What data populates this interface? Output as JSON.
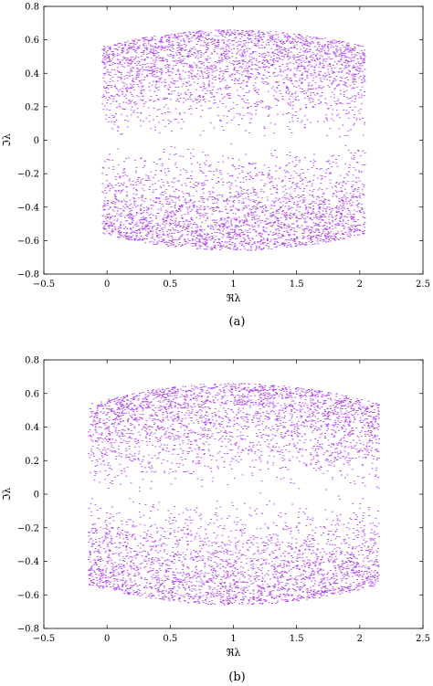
{
  "chart_data": [
    {
      "type": "scatter",
      "panel_label": "(a)",
      "xlabel": "ℜλ",
      "ylabel": "ℑλ",
      "xlim": [
        -0.5,
        2.5
      ],
      "ylim": [
        -0.8,
        0.8
      ],
      "xticks": [
        -0.5,
        0,
        0.5,
        1,
        1.5,
        2,
        2.5
      ],
      "yticks": [
        -0.8,
        -0.6,
        -0.4,
        -0.2,
        0,
        0.2,
        0.4,
        0.6,
        0.8
      ],
      "xtick_labels": [
        "−0.5",
        "0",
        "0.5",
        "1",
        "1.5",
        "2",
        "2.5"
      ],
      "ytick_labels": [
        "−0.8",
        "−0.6",
        "−0.4",
        "−0.2",
        "0",
        "0.2",
        "0.4",
        "0.6",
        "0.8"
      ],
      "grid": false,
      "point_color": "#a020f0",
      "support_region": {
        "x_min": -0.04,
        "x_max": 2.04,
        "center_x": 1.0,
        "y_max_at_center": 0.66,
        "y_max_at_edges": 0.56
      }
    },
    {
      "type": "scatter",
      "panel_label": "(b)",
      "xlabel": "ℜλ",
      "ylabel": "ℑλ",
      "xlim": [
        -0.5,
        2.5
      ],
      "ylim": [
        -0.8,
        0.8
      ],
      "xticks": [
        -0.5,
        0,
        0.5,
        1,
        1.5,
        2,
        2.5
      ],
      "yticks": [
        -0.8,
        -0.6,
        -0.4,
        -0.2,
        0,
        0.2,
        0.4,
        0.6,
        0.8
      ],
      "xtick_labels": [
        "−0.5",
        "0",
        "0.5",
        "1",
        "1.5",
        "2",
        "2.5"
      ],
      "ytick_labels": [
        "−0.8",
        "−0.6",
        "−0.4",
        "−0.2",
        "0",
        "0.2",
        "0.4",
        "0.6",
        "0.8"
      ],
      "grid": false,
      "point_color": "#a020f0",
      "support_region": {
        "x_min": -0.15,
        "x_max": 2.15,
        "center_x": 1.0,
        "y_max_at_center": 0.66,
        "y_max_at_edges": 0.54
      }
    }
  ]
}
